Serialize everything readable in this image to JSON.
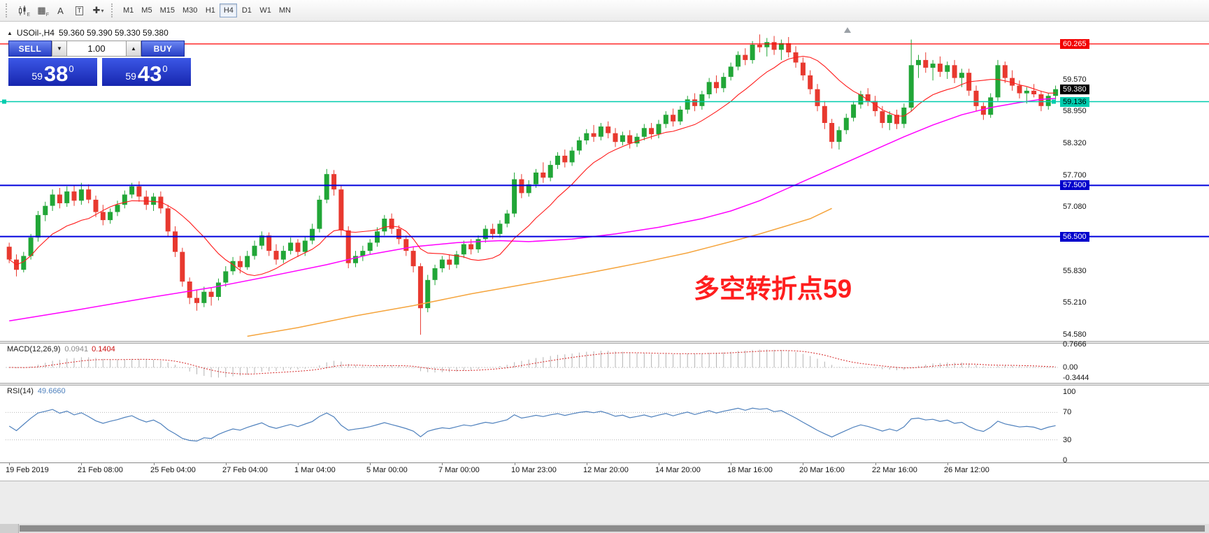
{
  "toolbar": {
    "icons": [
      {
        "name": "candlestick-chart-icon",
        "sub": "E"
      },
      {
        "name": "grid-icon",
        "glyph": "▦",
        "sub": "F"
      },
      {
        "name": "text-label-icon",
        "glyph": "A"
      },
      {
        "name": "text-frame-icon",
        "glyph": "T"
      },
      {
        "name": "crosshair-tool-icon",
        "glyph": "✚",
        "caret": "▾"
      }
    ],
    "timeframes": [
      "M1",
      "M5",
      "M15",
      "M30",
      "H1",
      "H4",
      "D1",
      "W1",
      "MN"
    ],
    "active_timeframe": "H4"
  },
  "chart": {
    "collapse_glyph": "▲",
    "title": "USOil-,H4",
    "ohlc": "59.360 59.390 59.330 59.380"
  },
  "one_click": {
    "sell_label": "SELL",
    "buy_label": "BUY",
    "volume": "1.00",
    "dec_glyph": "▼",
    "inc_glyph": "▲",
    "bid_prefix": "59",
    "bid_big": "38",
    "bid_sup": "0",
    "ask_prefix": "59",
    "ask_big": "43",
    "ask_sup": "0",
    "accent_color": "#2840c6"
  },
  "annotation": {
    "text": "多空转折点59",
    "color": "#ff1e1e"
  },
  "chart_data": {
    "type": "candlestick",
    "symbol": "USOil-",
    "timeframe": "H4",
    "ylim": [
      54.46,
      60.7
    ],
    "colors": {
      "bull": "#21a637",
      "bear": "#e8392f"
    },
    "candles": [
      [
        56.3,
        56.38,
        55.98,
        56.05
      ],
      [
        56.05,
        56.15,
        55.72,
        55.85
      ],
      [
        55.85,
        56.2,
        55.8,
        56.12
      ],
      [
        56.12,
        56.55,
        56.05,
        56.48
      ],
      [
        56.48,
        57.0,
        56.4,
        56.92
      ],
      [
        56.92,
        57.18,
        56.8,
        57.1
      ],
      [
        57.1,
        57.42,
        57.0,
        57.32
      ],
      [
        57.32,
        57.45,
        57.05,
        57.15
      ],
      [
        57.15,
        57.48,
        57.08,
        57.38
      ],
      [
        57.38,
        57.5,
        57.1,
        57.2
      ],
      [
        57.2,
        57.55,
        57.12,
        57.42
      ],
      [
        57.42,
        57.52,
        57.15,
        57.22
      ],
      [
        57.22,
        57.3,
        56.88,
        56.98
      ],
      [
        56.98,
        57.12,
        56.72,
        56.82
      ],
      [
        56.82,
        57.05,
        56.75,
        56.98
      ],
      [
        56.98,
        57.2,
        56.9,
        57.12
      ],
      [
        57.12,
        57.4,
        57.05,
        57.32
      ],
      [
        57.32,
        57.55,
        57.25,
        57.48
      ],
      [
        57.48,
        57.58,
        57.18,
        57.28
      ],
      [
        57.28,
        57.4,
        57.02,
        57.12
      ],
      [
        57.12,
        57.35,
        57.0,
        57.28
      ],
      [
        57.28,
        57.38,
        56.95,
        57.05
      ],
      [
        57.05,
        57.12,
        56.5,
        56.6
      ],
      [
        56.6,
        56.7,
        56.1,
        56.2
      ],
      [
        56.2,
        56.28,
        55.52,
        55.62
      ],
      [
        55.62,
        55.7,
        55.18,
        55.3
      ],
      [
        55.3,
        55.45,
        55.05,
        55.2
      ],
      [
        55.2,
        55.52,
        55.12,
        55.42
      ],
      [
        55.42,
        55.5,
        55.15,
        55.32
      ],
      [
        55.32,
        55.68,
        55.25,
        55.6
      ],
      [
        55.6,
        55.92,
        55.52,
        55.82
      ],
      [
        55.82,
        56.1,
        55.75,
        56.02
      ],
      [
        56.02,
        56.12,
        55.78,
        55.9
      ],
      [
        55.9,
        56.22,
        55.85,
        56.12
      ],
      [
        56.12,
        56.42,
        56.05,
        56.32
      ],
      [
        56.32,
        56.6,
        56.25,
        56.52
      ],
      [
        56.52,
        56.58,
        56.12,
        56.22
      ],
      [
        56.22,
        56.35,
        55.95,
        56.05
      ],
      [
        56.05,
        56.32,
        55.98,
        56.22
      ],
      [
        56.22,
        56.48,
        56.15,
        56.38
      ],
      [
        56.38,
        56.45,
        56.1,
        56.2
      ],
      [
        56.2,
        56.5,
        56.12,
        56.42
      ],
      [
        56.42,
        56.75,
        56.35,
        56.65
      ],
      [
        56.65,
        57.3,
        56.58,
        57.22
      ],
      [
        57.22,
        57.82,
        57.15,
        57.72
      ],
      [
        57.72,
        57.8,
        57.3,
        57.42
      ],
      [
        57.42,
        57.5,
        56.52,
        56.62
      ],
      [
        56.62,
        56.7,
        55.88,
        55.98
      ],
      [
        55.98,
        56.22,
        55.9,
        56.12
      ],
      [
        56.12,
        56.32,
        56.02,
        56.22
      ],
      [
        56.22,
        56.45,
        56.15,
        56.38
      ],
      [
        56.38,
        56.68,
        56.3,
        56.6
      ],
      [
        56.6,
        56.92,
        56.52,
        56.85
      ],
      [
        56.85,
        56.95,
        56.55,
        56.65
      ],
      [
        56.65,
        56.72,
        56.35,
        56.45
      ],
      [
        56.45,
        56.52,
        56.12,
        56.22
      ],
      [
        56.22,
        56.3,
        55.8,
        55.92
      ],
      [
        55.92,
        55.98,
        54.58,
        55.1
      ],
      [
        55.1,
        55.75,
        55.02,
        55.65
      ],
      [
        55.65,
        55.95,
        55.55,
        55.88
      ],
      [
        55.88,
        56.12,
        55.8,
        56.05
      ],
      [
        56.05,
        56.15,
        55.85,
        55.95
      ],
      [
        55.95,
        56.22,
        55.88,
        56.15
      ],
      [
        56.15,
        56.42,
        56.08,
        56.35
      ],
      [
        56.35,
        56.45,
        56.15,
        56.25
      ],
      [
        56.25,
        56.52,
        56.18,
        56.45
      ],
      [
        56.45,
        56.72,
        56.38,
        56.65
      ],
      [
        56.65,
        56.75,
        56.45,
        56.55
      ],
      [
        56.55,
        56.82,
        56.48,
        56.75
      ],
      [
        56.75,
        57.02,
        56.68,
        56.95
      ],
      [
        56.95,
        57.75,
        56.88,
        57.62
      ],
      [
        57.62,
        57.72,
        57.25,
        57.35
      ],
      [
        57.35,
        57.6,
        57.28,
        57.52
      ],
      [
        57.52,
        57.82,
        57.45,
        57.75
      ],
      [
        57.75,
        57.95,
        57.55,
        57.65
      ],
      [
        57.65,
        57.98,
        57.58,
        57.9
      ],
      [
        57.9,
        58.15,
        57.82,
        58.08
      ],
      [
        58.08,
        58.2,
        57.85,
        57.95
      ],
      [
        57.95,
        58.25,
        57.88,
        58.18
      ],
      [
        58.18,
        58.45,
        58.1,
        58.38
      ],
      [
        58.38,
        58.6,
        58.3,
        58.52
      ],
      [
        58.52,
        58.68,
        58.35,
        58.45
      ],
      [
        58.45,
        58.72,
        58.38,
        58.65
      ],
      [
        58.65,
        58.75,
        58.42,
        58.52
      ],
      [
        58.52,
        58.62,
        58.25,
        58.35
      ],
      [
        58.35,
        58.55,
        58.28,
        58.48
      ],
      [
        58.48,
        58.58,
        58.22,
        58.32
      ],
      [
        58.32,
        58.52,
        58.25,
        58.45
      ],
      [
        58.45,
        58.7,
        58.38,
        58.62
      ],
      [
        58.62,
        58.72,
        58.4,
        58.5
      ],
      [
        58.5,
        58.78,
        58.42,
        58.7
      ],
      [
        58.7,
        58.95,
        58.62,
        58.88
      ],
      [
        58.88,
        59.0,
        58.65,
        58.75
      ],
      [
        58.75,
        59.05,
        58.68,
        58.98
      ],
      [
        58.98,
        59.25,
        58.9,
        59.18
      ],
      [
        59.18,
        59.3,
        58.95,
        59.05
      ],
      [
        59.05,
        59.35,
        58.98,
        59.28
      ],
      [
        59.28,
        59.6,
        59.2,
        59.52
      ],
      [
        59.52,
        59.65,
        59.3,
        59.4
      ],
      [
        59.4,
        59.7,
        59.32,
        59.62
      ],
      [
        59.62,
        59.9,
        59.55,
        59.82
      ],
      [
        59.82,
        60.12,
        59.75,
        60.05
      ],
      [
        60.05,
        60.18,
        59.85,
        59.95
      ],
      [
        59.95,
        60.32,
        59.88,
        60.25
      ],
      [
        60.25,
        60.45,
        60.1,
        60.2
      ],
      [
        60.2,
        60.38,
        60.02,
        60.3
      ],
      [
        60.3,
        60.42,
        60.05,
        60.15
      ],
      [
        60.15,
        60.35,
        59.95,
        60.28
      ],
      [
        60.28,
        60.4,
        60.0,
        60.1
      ],
      [
        60.1,
        60.22,
        59.8,
        59.9
      ],
      [
        59.9,
        60.0,
        59.55,
        59.65
      ],
      [
        59.65,
        59.75,
        59.28,
        59.38
      ],
      [
        59.38,
        59.48,
        58.95,
        59.05
      ],
      [
        59.05,
        59.15,
        58.6,
        58.72
      ],
      [
        58.72,
        58.8,
        58.22,
        58.35
      ],
      [
        58.35,
        58.65,
        58.2,
        58.58
      ],
      [
        58.58,
        58.9,
        58.5,
        58.82
      ],
      [
        58.82,
        59.15,
        58.75,
        59.08
      ],
      [
        59.08,
        59.35,
        59.0,
        59.28
      ],
      [
        59.28,
        59.4,
        59.05,
        59.15
      ],
      [
        59.15,
        59.25,
        58.85,
        58.95
      ],
      [
        58.95,
        59.05,
        58.62,
        58.72
      ],
      [
        58.72,
        58.95,
        58.58,
        58.88
      ],
      [
        58.88,
        58.98,
        58.6,
        58.7
      ],
      [
        58.7,
        59.1,
        58.62,
        59.02
      ],
      [
        59.02,
        60.35,
        58.95,
        59.85
      ],
      [
        59.85,
        60.05,
        59.6,
        59.95
      ],
      [
        59.95,
        60.1,
        59.7,
        59.8
      ],
      [
        59.8,
        59.95,
        59.55,
        59.88
      ],
      [
        59.88,
        60.02,
        59.62,
        59.72
      ],
      [
        59.72,
        59.92,
        59.58,
        59.85
      ],
      [
        59.85,
        59.95,
        59.5,
        59.6
      ],
      [
        59.6,
        59.78,
        59.42,
        59.7
      ],
      [
        59.7,
        59.78,
        59.25,
        59.35
      ],
      [
        59.35,
        59.45,
        58.95,
        59.05
      ],
      [
        59.05,
        59.12,
        58.78,
        58.88
      ],
      [
        58.88,
        59.3,
        58.82,
        59.22
      ],
      [
        59.22,
        59.95,
        59.15,
        59.85
      ],
      [
        59.85,
        59.92,
        59.5,
        59.6
      ],
      [
        59.6,
        59.75,
        59.35,
        59.45
      ],
      [
        59.45,
        59.55,
        59.2,
        59.3
      ],
      [
        59.3,
        59.42,
        59.1,
        59.35
      ],
      [
        59.35,
        59.48,
        59.22,
        59.28
      ],
      [
        59.28,
        59.35,
        58.95,
        59.05
      ],
      [
        59.05,
        59.3,
        58.98,
        59.25
      ],
      [
        59.25,
        59.45,
        59.18,
        59.38
      ]
    ],
    "x_labels": [
      {
        "i": 0,
        "t": "19 Feb 2019"
      },
      {
        "i": 10,
        "t": "21 Feb 08:00"
      },
      {
        "i": 20,
        "t": "25 Feb 04:00"
      },
      {
        "i": 30,
        "t": "27 Feb 04:00"
      },
      {
        "i": 40,
        "t": "1 Mar 04:00"
      },
      {
        "i": 50,
        "t": "5 Mar 00:00"
      },
      {
        "i": 60,
        "t": "7 Mar 00:00"
      },
      {
        "i": 70,
        "t": "10 Mar 23:00"
      },
      {
        "i": 80,
        "t": "12 Mar 20:00"
      },
      {
        "i": 90,
        "t": "14 Mar 20:00"
      },
      {
        "i": 100,
        "t": "18 Mar 16:00"
      },
      {
        "i": 110,
        "t": "20 Mar 16:00"
      },
      {
        "i": 120,
        "t": "22 Mar 16:00"
      },
      {
        "i": 130,
        "t": "26 Mar 12:00"
      }
    ],
    "hlines": [
      {
        "price": 60.265,
        "color": "#ff0000",
        "width": 1.2,
        "markers": false
      },
      {
        "price": 59.136,
        "color": "#00ccae",
        "width": 1.4,
        "markers": true
      },
      {
        "price": 57.5,
        "color": "#0000dd",
        "width": 2,
        "markers": false
      },
      {
        "price": 56.5,
        "color": "#0000dd",
        "width": 2,
        "markers": false
      }
    ],
    "axis_ticks": [
      {
        "label": "59.570",
        "price": 59.57
      },
      {
        "label": "58.950",
        "price": 58.95
      },
      {
        "label": "58.320",
        "price": 58.32
      },
      {
        "label": "57.700",
        "price": 57.7
      },
      {
        "label": "57.080",
        "price": 57.08
      },
      {
        "label": "55.830",
        "price": 55.83
      },
      {
        "label": "55.210",
        "price": 55.21
      },
      {
        "label": "54.580",
        "price": 54.58
      }
    ],
    "badges": [
      {
        "label": "60.265",
        "price": 60.265,
        "style": "red"
      },
      {
        "label": "59.380",
        "price": 59.38,
        "style": "black"
      },
      {
        "label": "59.136",
        "price": 59.136,
        "style": "teal"
      },
      {
        "label": "57.500",
        "price": 57.5,
        "style": "blue"
      },
      {
        "label": "56.500",
        "price": 56.5,
        "style": "blue"
      }
    ],
    "ma_fast": {
      "period": 12,
      "color": "#ff1a1a"
    },
    "ma_magenta": {
      "color": "#ff00ff",
      "points": [
        [
          0,
          54.85
        ],
        [
          10,
          55.08
        ],
        [
          20,
          55.32
        ],
        [
          28,
          55.5
        ],
        [
          36,
          55.72
        ],
        [
          44,
          55.95
        ],
        [
          50,
          56.15
        ],
        [
          56,
          56.3
        ],
        [
          62,
          56.38
        ],
        [
          68,
          56.42
        ],
        [
          72,
          56.4
        ],
        [
          78,
          56.45
        ],
        [
          84,
          56.55
        ],
        [
          90,
          56.68
        ],
        [
          96,
          56.85
        ],
        [
          100,
          57.0
        ],
        [
          104,
          57.2
        ],
        [
          108,
          57.45
        ],
        [
          112,
          57.7
        ],
        [
          116,
          57.95
        ],
        [
          120,
          58.2
        ],
        [
          124,
          58.45
        ],
        [
          128,
          58.68
        ],
        [
          132,
          58.88
        ],
        [
          136,
          59.02
        ],
        [
          140,
          59.12
        ],
        [
          143,
          59.18
        ],
        [
          145,
          59.2
        ]
      ]
    },
    "ma_orange": {
      "color": "#f5a43c",
      "points": [
        [
          33,
          54.55
        ],
        [
          40,
          54.72
        ],
        [
          48,
          54.95
        ],
        [
          56,
          55.15
        ],
        [
          64,
          55.38
        ],
        [
          72,
          55.58
        ],
        [
          80,
          55.78
        ],
        [
          88,
          56.0
        ],
        [
          94,
          56.18
        ],
        [
          100,
          56.4
        ],
        [
          104,
          56.55
        ],
        [
          108,
          56.72
        ],
        [
          111,
          56.85
        ],
        [
          114,
          57.05
        ]
      ]
    },
    "macd": {
      "label": "MACD(12,26,9)",
      "value_main": "0.0941",
      "value_signal": "0.1404",
      "fast": 12,
      "slow": 26,
      "signal": 9,
      "axis": [
        {
          "label": "0.7666",
          "v": 0.7666
        },
        {
          "label": "0.00",
          "v": 0
        },
        {
          "label": "-0.3444",
          "v": -0.3444
        }
      ],
      "range": [
        -0.3444,
        0.7666
      ]
    },
    "rsi": {
      "label": "RSI(14)",
      "value": "49.6660",
      "period": 14,
      "color": "#4f81bd",
      "levels": [
        70,
        30
      ],
      "axis": [
        {
          "label": "100",
          "v": 100
        },
        {
          "label": "70",
          "v": 70
        },
        {
          "label": "30",
          "v": 30
        },
        {
          "label": "0",
          "v": 0
        }
      ]
    }
  }
}
